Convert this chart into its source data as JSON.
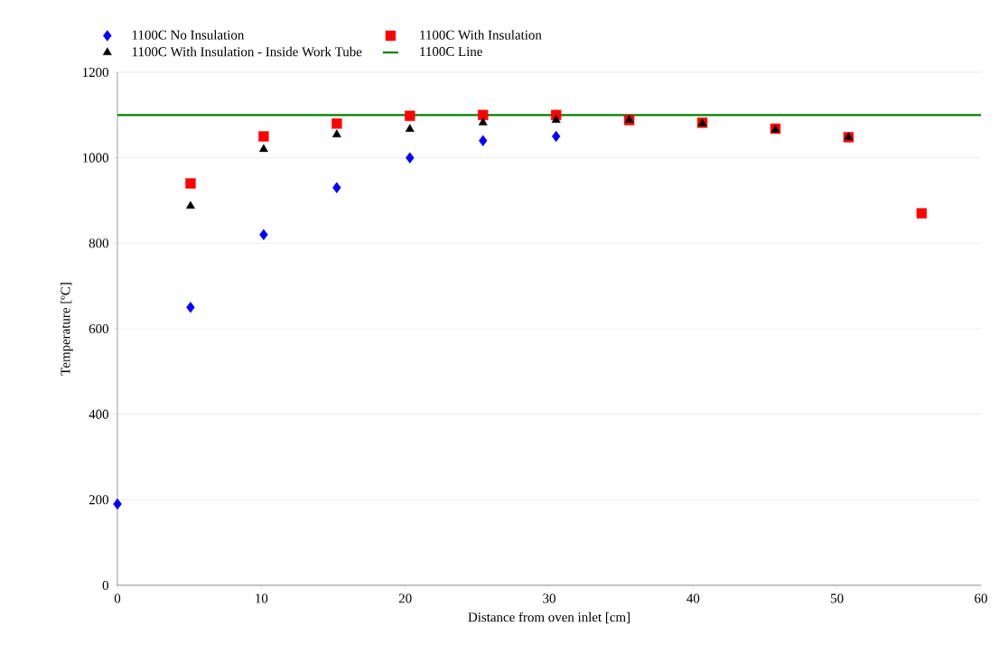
{
  "chart_data": {
    "type": "scatter",
    "xlabel": "Distance from oven inlet [cm]",
    "ylabel": "Temperature [ºC]",
    "xlim": [
      0,
      60
    ],
    "xticks": [
      0,
      10,
      20,
      30,
      40,
      50,
      60
    ],
    "ylim": [
      0,
      1200
    ],
    "yticks": [
      0,
      200,
      400,
      600,
      800,
      1000,
      1200
    ],
    "grid": "y",
    "legend": "top",
    "series": [
      {
        "name": "1100C No Insulation",
        "color": "#0000ff",
        "marker": "diamond",
        "x": [
          0,
          5.08,
          10.16,
          15.24,
          20.32,
          25.4,
          30.48
        ],
        "values": [
          190,
          650,
          820,
          930,
          1000,
          1040,
          1050
        ]
      },
      {
        "name": "1100C With Insulation",
        "color": "#ff0000",
        "marker": "square",
        "x": [
          5.08,
          10.16,
          15.24,
          20.32,
          25.4,
          30.48,
          35.56,
          40.64,
          45.72,
          50.8,
          55.88
        ],
        "values": [
          940,
          1050,
          1080,
          1098,
          1100,
          1100,
          1088,
          1082,
          1068,
          1048,
          870
        ]
      },
      {
        "name": "1100C With Insulation - Inside Work Tube",
        "color": "#000000",
        "marker": "triangle",
        "x": [
          5.08,
          10.16,
          15.24,
          20.32,
          25.4,
          30.48,
          35.56,
          40.64,
          45.72,
          50.8
        ],
        "values": [
          887,
          1020,
          1054,
          1067,
          1082,
          1088,
          1088,
          1080,
          1065,
          1048
        ]
      },
      {
        "name": "1100C Line",
        "type": "line",
        "color": "#008000",
        "marker": "none",
        "x": [
          0,
          60
        ],
        "values": [
          1100,
          1100
        ]
      }
    ]
  }
}
